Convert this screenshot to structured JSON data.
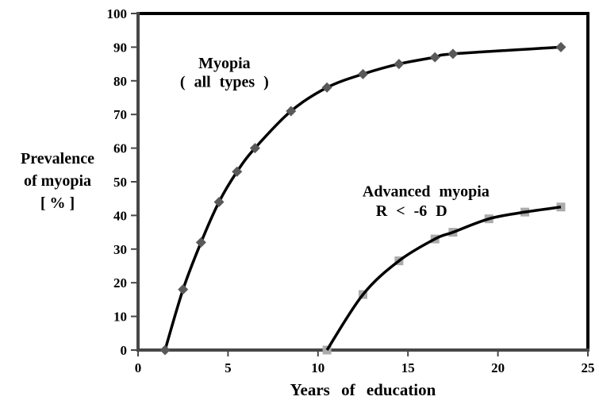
{
  "chart_data": {
    "type": "line",
    "title": "",
    "xlabel": "Years of education",
    "ylabel_lines": [
      "Prevalence",
      "of myopia",
      "[ % ]"
    ],
    "xlim": [
      0,
      25
    ],
    "ylim": [
      0,
      100
    ],
    "x_ticks": [
      0,
      5,
      10,
      15,
      20,
      25
    ],
    "y_ticks": [
      0,
      10,
      20,
      30,
      40,
      50,
      60,
      70,
      80,
      90,
      100
    ],
    "grid": false,
    "legend_position": "none",
    "colors": {
      "axis": "#474747",
      "frame": "#000000",
      "text": "#000000"
    },
    "series": [
      {
        "name": "Myopia ( all types )",
        "marker": "diamond",
        "marker_color": "#595959",
        "line_color": "#000000",
        "points": [
          [
            1.5,
            0
          ],
          [
            2.5,
            18
          ],
          [
            3.5,
            32
          ],
          [
            4.5,
            44
          ],
          [
            5.5,
            53
          ],
          [
            6.5,
            60
          ],
          [
            8.5,
            71
          ],
          [
            10.5,
            78
          ],
          [
            12.5,
            82
          ],
          [
            14.5,
            85
          ],
          [
            16.5,
            87
          ],
          [
            17.5,
            88
          ],
          [
            23.5,
            90
          ]
        ]
      },
      {
        "name": "Advanced myopia R < -6 D",
        "marker": "square",
        "marker_color": "#ababab",
        "line_color": "#000000",
        "points": [
          [
            10.5,
            0
          ],
          [
            12.5,
            16.5
          ],
          [
            14.5,
            26.5
          ],
          [
            16.5,
            33
          ],
          [
            17.5,
            35
          ],
          [
            19.5,
            39
          ],
          [
            21.5,
            41
          ],
          [
            23.5,
            42.5
          ]
        ]
      }
    ],
    "annotations": [
      {
        "text": "Myopia",
        "x": 4.8,
        "y": 85.2
      },
      {
        "text": "( all types )",
        "x": 4.8,
        "y": 79.6
      },
      {
        "text": "Advanced myopia",
        "x": 16.0,
        "y": 47.0
      },
      {
        "text": "R < -6 D",
        "x": 15.2,
        "y": 41.3
      }
    ]
  }
}
